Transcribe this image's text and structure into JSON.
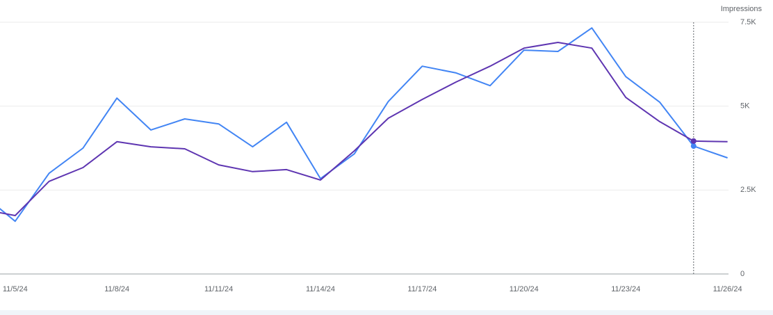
{
  "chart_data": {
    "type": "line",
    "y_axis_label": "Impressions",
    "categories": [
      null,
      "11/5/24",
      null,
      null,
      "11/8/24",
      null,
      null,
      "11/11/24",
      null,
      null,
      "11/14/24",
      null,
      null,
      "11/17/24",
      null,
      null,
      "11/20/24",
      null,
      null,
      "11/23/24",
      null,
      null,
      "11/26/24"
    ],
    "series": [
      {
        "color": "#4285f4",
        "values": [
          2400,
          1570,
          3000,
          3750,
          5240,
          4290,
          4620,
          4470,
          3790,
          4520,
          2840,
          3580,
          5140,
          6190,
          5990,
          5610,
          6670,
          6630,
          7330,
          5880,
          5120,
          3810,
          3460
        ]
      },
      {
        "color": "#5e35b1",
        "values": [
          1930,
          1740,
          2760,
          3170,
          3940,
          3790,
          3730,
          3250,
          3050,
          3110,
          2800,
          3670,
          4640,
          5200,
          5720,
          6190,
          6730,
          6900,
          6730,
          5260,
          4540,
          3960,
          3940
        ]
      }
    ],
    "ylim": [
      0,
      7500
    ],
    "yticks": [
      0,
      {
        "value": 2500,
        "label": "2.5K"
      },
      {
        "value": 5000,
        "label": "5K"
      },
      {
        "value": 7500,
        "label": "7.5K"
      }
    ],
    "grid": true
  }
}
